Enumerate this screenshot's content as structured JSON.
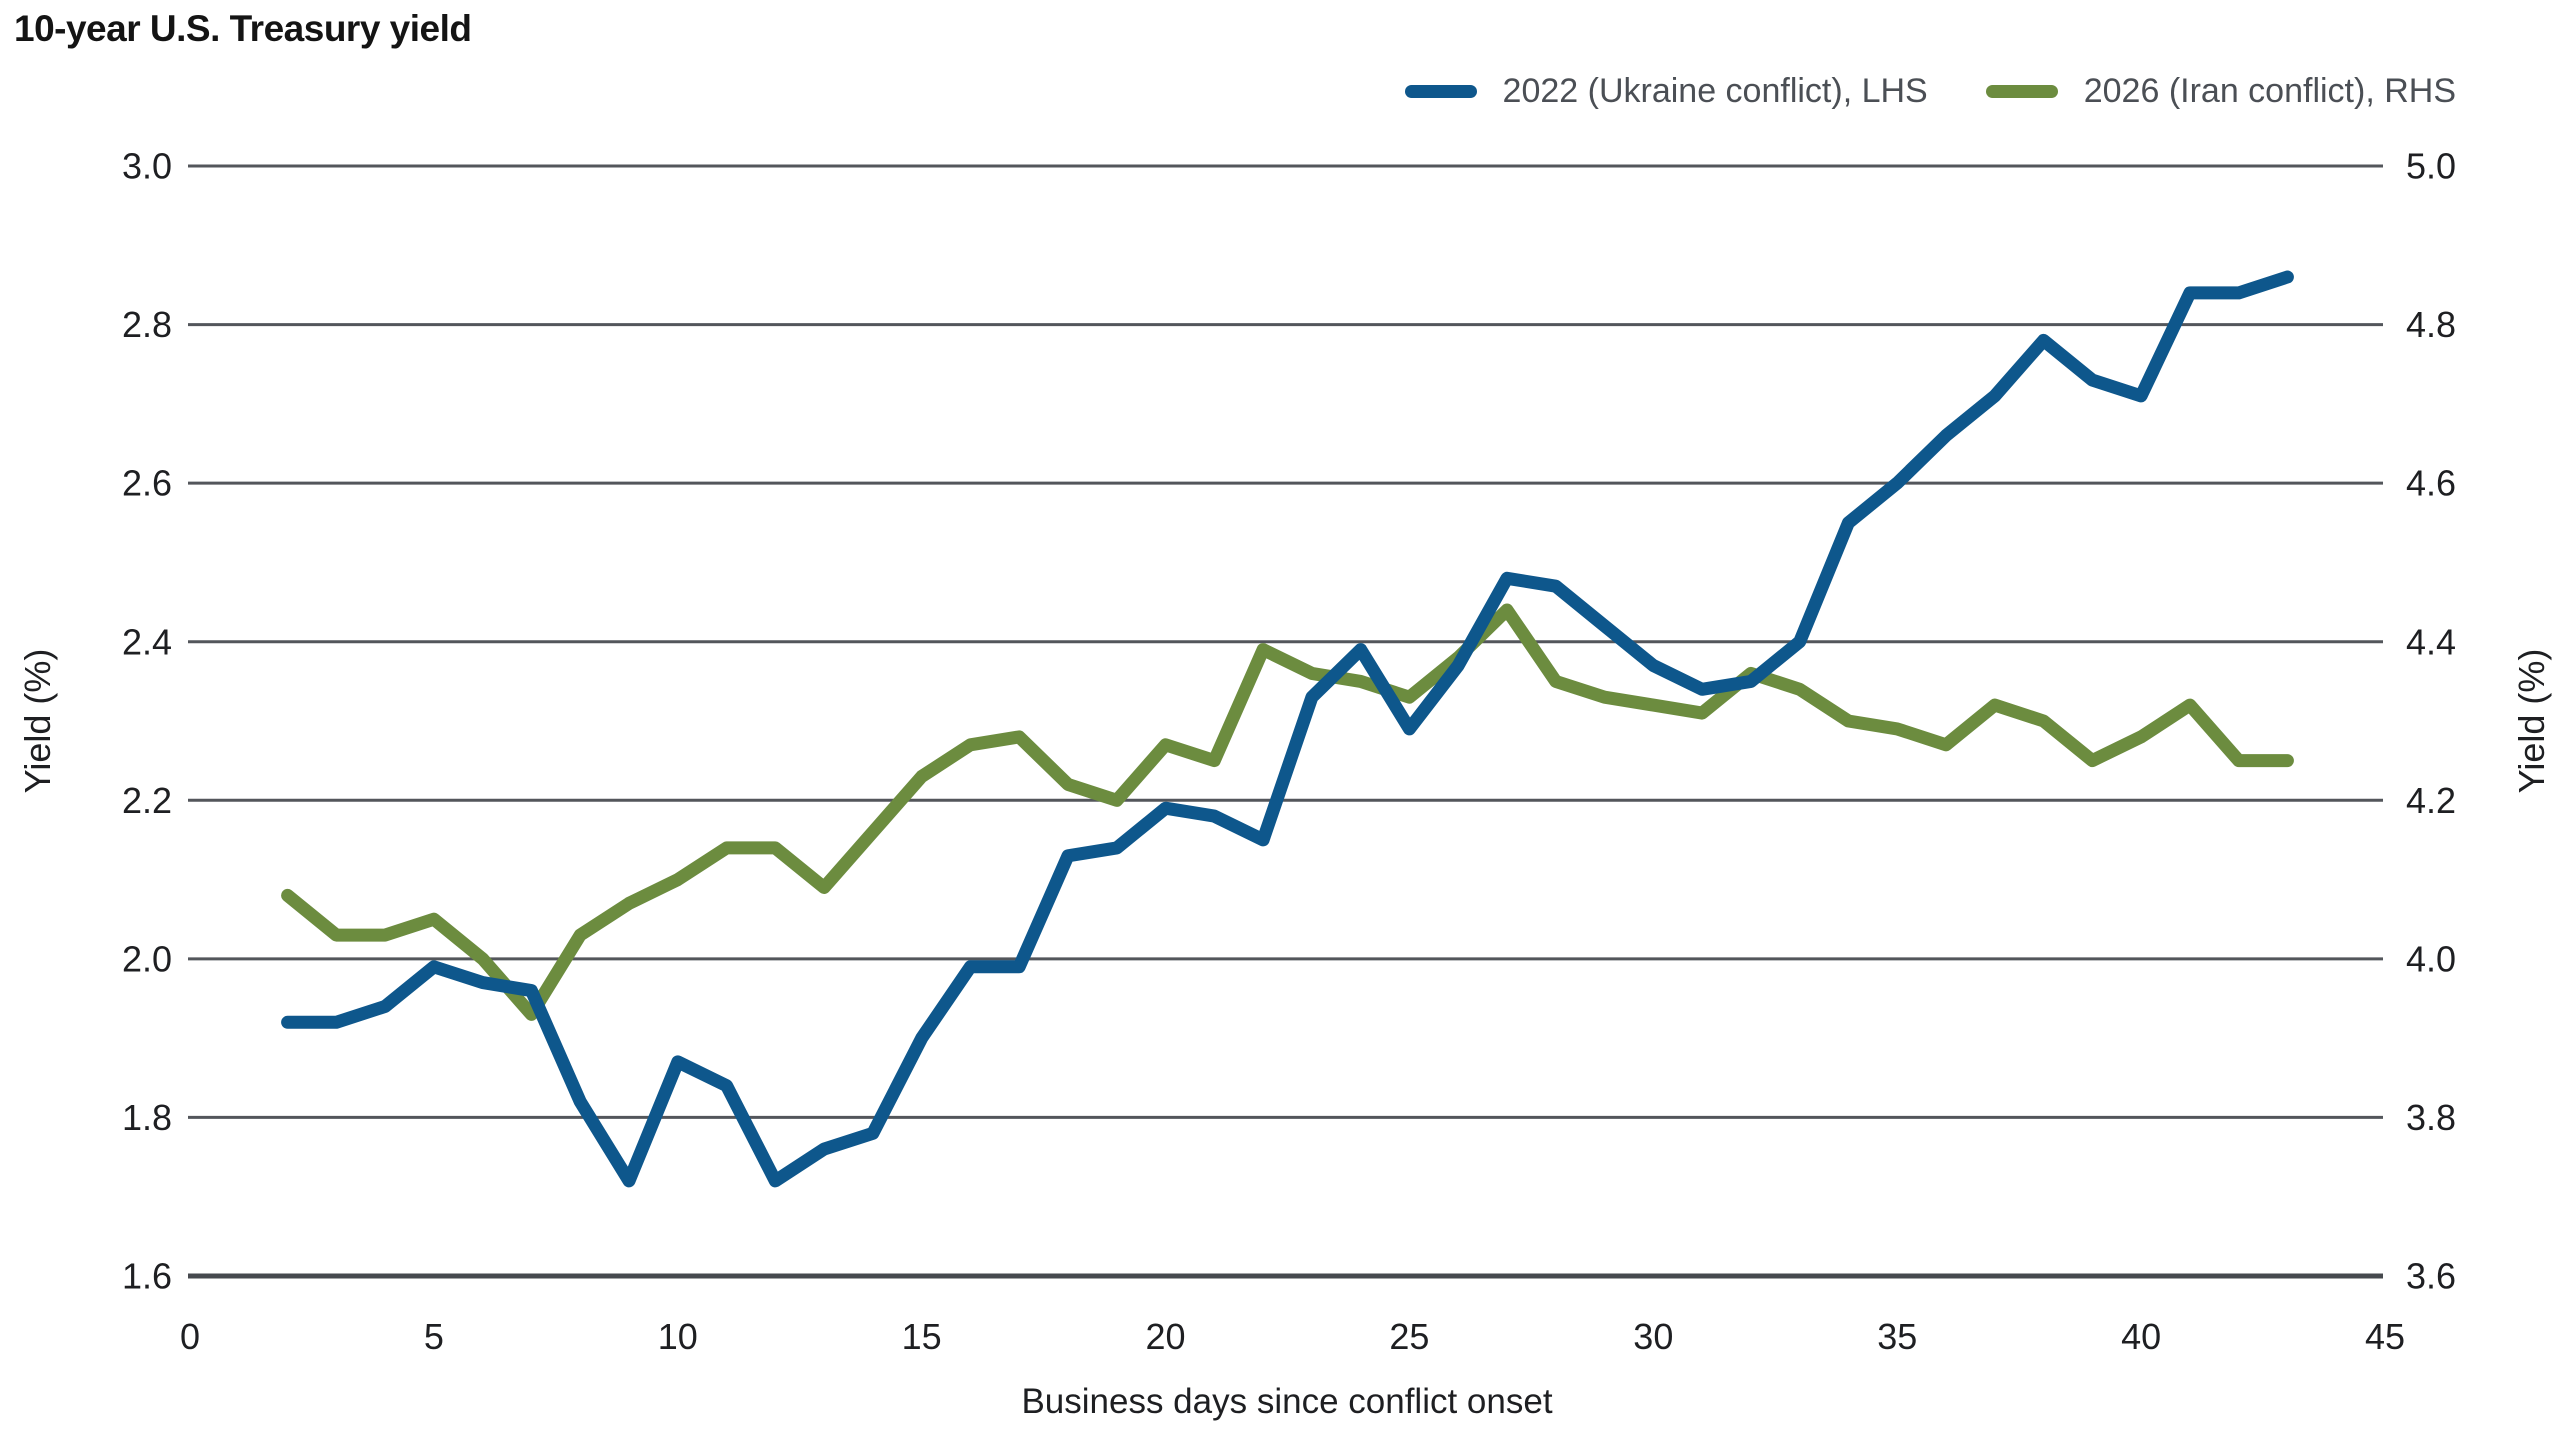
{
  "title": "10-year U.S. Treasury yield",
  "legend": {
    "position": "top-right",
    "items": [
      {
        "label": "2022 (Ukraine conflict), LHS",
        "color": "#0e578c"
      },
      {
        "label": "2026 (Iran conflict), RHS",
        "color": "#6c8c3f"
      }
    ]
  },
  "colors": {
    "blue": "#0e578c",
    "green": "#6c8c3f",
    "gridline": "#53565b",
    "axis_line": "#46494e",
    "title_text": "#141414",
    "tick_text": "#1e1f22",
    "legend_text": "#4b4f55"
  },
  "chart_data": {
    "type": "line",
    "title": "10-year U.S. Treasury yield",
    "xlabel": "Business days since conflict onset",
    "ylabel_left": "Yield (%)",
    "ylabel_right": "Yield (%)",
    "xlim": [
      0,
      45
    ],
    "x_ticks": [
      0,
      5,
      10,
      15,
      20,
      25,
      30,
      35,
      40,
      45
    ],
    "left_axis": {
      "min": 1.6,
      "max": 3.0,
      "ticks": [
        1.6,
        1.8,
        2.0,
        2.2,
        2.4,
        2.6,
        2.8,
        3.0
      ]
    },
    "right_axis": {
      "min": 3.6,
      "max": 5.0,
      "ticks": [
        3.6,
        3.8,
        4.0,
        4.2,
        4.4,
        4.6,
        4.8,
        5.0
      ]
    },
    "grid": "horizontal",
    "x": [
      2,
      3,
      4,
      5,
      6,
      7,
      8,
      9,
      10,
      11,
      12,
      13,
      14,
      15,
      16,
      17,
      18,
      19,
      20,
      21,
      22,
      23,
      24,
      25,
      26,
      27,
      28,
      29,
      30,
      31,
      32,
      33,
      34,
      35,
      36,
      37,
      38,
      39,
      40,
      41,
      42,
      43
    ],
    "series": [
      {
        "name": "2022 (Ukraine conflict), LHS",
        "axis": "left",
        "color": "#0e578c",
        "values": [
          1.92,
          1.92,
          1.94,
          1.99,
          1.97,
          1.96,
          1.82,
          1.72,
          1.87,
          1.84,
          1.72,
          1.76,
          1.78,
          1.9,
          1.99,
          1.99,
          2.13,
          2.14,
          2.19,
          2.18,
          2.15,
          2.33,
          2.39,
          2.29,
          2.37,
          2.48,
          2.47,
          2.42,
          2.37,
          2.34,
          2.35,
          2.4,
          2.55,
          2.6,
          2.66,
          2.71,
          2.78,
          2.73,
          2.71,
          2.84,
          2.84,
          2.86
        ]
      },
      {
        "name": "2026 (Iran conflict), RHS",
        "axis": "right",
        "color": "#6c8c3f",
        "values": [
          4.08,
          4.03,
          4.03,
          4.05,
          4.0,
          3.93,
          4.03,
          4.07,
          4.1,
          4.14,
          4.14,
          4.09,
          4.16,
          4.23,
          4.27,
          4.28,
          4.22,
          4.2,
          4.27,
          4.25,
          4.39,
          4.36,
          4.35,
          4.33,
          4.38,
          4.44,
          4.35,
          4.33,
          4.32,
          4.31,
          4.36,
          4.34,
          4.3,
          4.29,
          4.27,
          4.32,
          4.3,
          4.25,
          4.28,
          4.32,
          4.25,
          4.25
        ]
      }
    ]
  }
}
